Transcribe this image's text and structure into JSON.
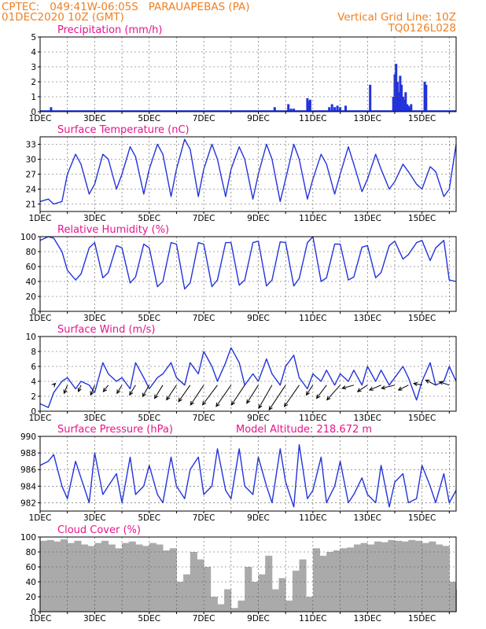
{
  "header": {
    "line1": "CPTEC:   049:41W-06:05S   PARAUAPEBAS (PA)",
    "line2": "01DEC2020 10Z (GMT)",
    "right1": "Vertical Grid Line: 10Z",
    "right2": "TQ0126L028"
  },
  "x_tick_labels": [
    "1DEC",
    "3DEC",
    "5DEC",
    "7DEC",
    "9DEC",
    "11DEC",
    "13DEC",
    "15DEC"
  ],
  "colors": {
    "header": "#f08020",
    "panel_title": "#e8148c",
    "series": "#2233dd",
    "cloud": "#aaaaaa",
    "arrow": "#000000"
  },
  "chart_data": [
    {
      "type": "bar",
      "title": "Precipitation (mm/h)",
      "xlim": [
        0,
        15.25
      ],
      "ylim": [
        0,
        5
      ],
      "yticks": [
        0,
        1,
        2,
        3,
        4,
        5
      ],
      "x": [
        0.4,
        8.6,
        9.1,
        9.2,
        9.3,
        9.8,
        9.85,
        9.9,
        10.6,
        10.7,
        10.8,
        10.9,
        11.0,
        11.2,
        12.1,
        12.95,
        13.0,
        13.05,
        13.1,
        13.15,
        13.2,
        13.25,
        13.3,
        13.35,
        13.4,
        13.45,
        13.5,
        13.55,
        13.6,
        14.1,
        14.15
      ],
      "values": [
        0.3,
        0.3,
        0.5,
        0.2,
        0.2,
        0.9,
        0.7,
        0.8,
        0.3,
        0.5,
        0.3,
        0.4,
        0.3,
        0.4,
        1.8,
        1.0,
        2.5,
        3.2,
        2.0,
        1.3,
        2.4,
        1.8,
        1.0,
        0.8,
        1.3,
        0.5,
        0.4,
        0.3,
        0.5,
        2.0,
        1.8
      ]
    },
    {
      "type": "line",
      "title": "Surface Temperature (nC)",
      "xlim": [
        0,
        15.25
      ],
      "ylim": [
        19.5,
        34.5
      ],
      "yticks": [
        21,
        24,
        27,
        30,
        33
      ],
      "x": [
        0.0,
        0.3,
        0.5,
        0.8,
        1.0,
        1.3,
        1.5,
        1.8,
        2.0,
        2.3,
        2.5,
        2.8,
        3.0,
        3.3,
        3.5,
        3.8,
        4.0,
        4.3,
        4.5,
        4.8,
        5.0,
        5.3,
        5.5,
        5.8,
        6.0,
        6.3,
        6.5,
        6.8,
        7.0,
        7.3,
        7.5,
        7.8,
        8.0,
        8.3,
        8.5,
        8.8,
        9.0,
        9.3,
        9.5,
        9.8,
        10.0,
        10.3,
        10.5,
        10.8,
        11.0,
        11.3,
        11.5,
        11.8,
        12.0,
        12.3,
        12.5,
        12.8,
        13.0,
        13.3,
        13.5,
        13.8,
        14.0,
        14.3,
        14.5,
        14.8,
        15.0,
        15.25
      ],
      "values": [
        21.5,
        22.0,
        21.0,
        21.5,
        27.0,
        31.0,
        29.0,
        23.0,
        25.0,
        31.0,
        30.0,
        24.0,
        27.0,
        32.5,
        30.5,
        23.0,
        28.0,
        33.0,
        31.0,
        22.5,
        28.0,
        34.0,
        32.0,
        22.5,
        28.0,
        33.0,
        30.0,
        22.5,
        28.0,
        32.5,
        30.0,
        22.0,
        27.0,
        33.0,
        30.0,
        21.5,
        26.0,
        33.0,
        30.0,
        22.0,
        26.0,
        31.0,
        29.0,
        23.0,
        27.0,
        32.5,
        29.0,
        23.5,
        26.0,
        31.0,
        28.0,
        24.0,
        25.5,
        29.0,
        27.5,
        25.0,
        24.0,
        28.5,
        27.5,
        22.5,
        24.0,
        33.0
      ]
    },
    {
      "type": "line",
      "title": "Relative Humidity (%)",
      "xlim": [
        0,
        15.25
      ],
      "ylim": [
        0,
        100
      ],
      "yticks": [
        0,
        20,
        40,
        60,
        80,
        100
      ],
      "x": [
        0.0,
        0.3,
        0.5,
        0.8,
        1.0,
        1.3,
        1.5,
        1.8,
        2.0,
        2.3,
        2.5,
        2.8,
        3.0,
        3.3,
        3.5,
        3.8,
        4.0,
        4.3,
        4.5,
        4.8,
        5.0,
        5.3,
        5.5,
        5.8,
        6.0,
        6.3,
        6.5,
        6.8,
        7.0,
        7.3,
        7.5,
        7.8,
        8.0,
        8.3,
        8.5,
        8.8,
        9.0,
        9.3,
        9.5,
        9.8,
        10.0,
        10.3,
        10.5,
        10.8,
        11.0,
        11.3,
        11.5,
        11.8,
        12.0,
        12.3,
        12.5,
        12.8,
        13.0,
        13.3,
        13.5,
        13.8,
        14.0,
        14.3,
        14.5,
        14.8,
        15.0,
        15.25
      ],
      "values": [
        95,
        100,
        98,
        80,
        55,
        42,
        50,
        85,
        92,
        45,
        52,
        88,
        85,
        38,
        46,
        90,
        85,
        33,
        40,
        92,
        90,
        30,
        38,
        92,
        90,
        33,
        42,
        92,
        92,
        35,
        42,
        92,
        94,
        34,
        42,
        93,
        92,
        34,
        44,
        92,
        100,
        40,
        45,
        90,
        90,
        42,
        46,
        86,
        88,
        45,
        52,
        88,
        94,
        70,
        76,
        92,
        95,
        68,
        85,
        95,
        42,
        40
      ]
    },
    {
      "type": "line",
      "title": "Surface Wind (m/s)",
      "xlim": [
        0,
        15.25
      ],
      "ylim": [
        0,
        10
      ],
      "yticks": [
        0,
        2,
        4,
        6,
        8,
        10
      ],
      "x": [
        0.0,
        0.3,
        0.5,
        0.8,
        1.0,
        1.3,
        1.5,
        1.8,
        2.0,
        2.3,
        2.5,
        2.8,
        3.0,
        3.3,
        3.5,
        3.8,
        4.0,
        4.3,
        4.5,
        4.8,
        5.0,
        5.3,
        5.5,
        5.8,
        6.0,
        6.3,
        6.5,
        6.8,
        7.0,
        7.3,
        7.5,
        7.8,
        8.0,
        8.3,
        8.5,
        8.8,
        9.0,
        9.3,
        9.5,
        9.8,
        10.0,
        10.3,
        10.5,
        10.8,
        11.0,
        11.3,
        11.5,
        11.8,
        12.0,
        12.3,
        12.5,
        12.8,
        13.0,
        13.3,
        13.5,
        13.8,
        14.0,
        14.3,
        14.5,
        14.8,
        15.0,
        15.25
      ],
      "values": [
        1.0,
        0.5,
        2.5,
        4.0,
        4.5,
        3.0,
        4.0,
        3.5,
        2.5,
        6.5,
        5.0,
        4.0,
        4.5,
        3.0,
        6.5,
        4.5,
        3.0,
        4.5,
        5.0,
        6.5,
        4.5,
        3.5,
        6.5,
        5.0,
        8.0,
        6.0,
        4.0,
        6.5,
        8.5,
        6.5,
        3.5,
        5.0,
        4.0,
        7.0,
        5.0,
        3.5,
        6.0,
        7.5,
        4.5,
        3.0,
        5.0,
        4.0,
        5.5,
        3.5,
        5.0,
        4.0,
        5.5,
        3.5,
        6.0,
        4.0,
        5.5,
        3.5,
        4.5,
        6.0,
        4.5,
        1.5,
        4.0,
        6.5,
        3.5,
        4.0,
        6.0,
        4.0
      ],
      "wind_arrows": {
        "x": [
          0.5,
          1.0,
          1.5,
          2.0,
          2.5,
          3.0,
          3.5,
          4.0,
          4.5,
          5.0,
          5.5,
          6.0,
          6.5,
          7.0,
          7.5,
          8.0,
          8.5,
          9.0,
          9.5,
          10.0,
          10.5,
          11.0,
          11.5,
          12.0,
          12.5,
          13.0,
          13.5,
          14.0,
          14.5,
          15.0
        ],
        "u": [
          0.5,
          -1.0,
          -0.8,
          -1.2,
          -1.5,
          -1.5,
          -1.8,
          -2.0,
          -2.5,
          -3.0,
          -3.5,
          -4.0,
          -4.5,
          -4.5,
          -4.0,
          -3.5,
          -4.0,
          -5.0,
          -4.5,
          -2.0,
          -3.0,
          -4.0,
          -3.5,
          -3.0,
          -3.5,
          -4.0,
          -3.0,
          -2.5,
          -3.0,
          -3.0
        ],
        "v": [
          0.5,
          -2.5,
          -2.0,
          -3.0,
          -2.0,
          -2.5,
          -3.0,
          -3.5,
          -4.0,
          -4.5,
          -5.0,
          -6.0,
          -6.0,
          -6.5,
          -6.0,
          -5.5,
          -7.0,
          -7.5,
          -6.5,
          -3.0,
          -4.0,
          -4.5,
          -1.0,
          -2.0,
          -1.5,
          -1.0,
          -1.5,
          0.5,
          1.5,
          1.0
        ]
      }
    },
    {
      "type": "line",
      "title": "Surface Pressure (hPa)",
      "subtitle": "Model Altitude: 218.672  m",
      "xlim": [
        0,
        15.25
      ],
      "ylim": [
        981,
        990
      ],
      "yticks": [
        982,
        984,
        986,
        988,
        990
      ],
      "x": [
        0.0,
        0.3,
        0.5,
        0.8,
        1.0,
        1.3,
        1.5,
        1.8,
        2.0,
        2.3,
        2.5,
        2.8,
        3.0,
        3.3,
        3.5,
        3.8,
        4.0,
        4.3,
        4.5,
        4.8,
        5.0,
        5.3,
        5.5,
        5.8,
        6.0,
        6.3,
        6.5,
        6.8,
        7.0,
        7.3,
        7.5,
        7.8,
        8.0,
        8.3,
        8.5,
        8.8,
        9.0,
        9.3,
        9.5,
        9.8,
        10.0,
        10.3,
        10.5,
        10.8,
        11.0,
        11.3,
        11.5,
        11.8,
        12.0,
        12.3,
        12.5,
        12.8,
        13.0,
        13.3,
        13.5,
        13.8,
        14.0,
        14.3,
        14.5,
        14.8,
        15.0,
        15.25
      ],
      "values": [
        986.5,
        987.0,
        987.8,
        984.0,
        982.5,
        987.0,
        985.0,
        982.0,
        988.0,
        983.0,
        984.0,
        985.5,
        982.0,
        987.5,
        983.0,
        984.0,
        986.5,
        983.0,
        982.0,
        987.5,
        984.0,
        982.5,
        986.0,
        987.5,
        983.0,
        984.0,
        988.5,
        983.5,
        982.5,
        988.5,
        984.0,
        983.0,
        987.5,
        984.0,
        982.0,
        988.5,
        984.5,
        981.5,
        989.0,
        982.5,
        983.5,
        987.5,
        982.0,
        984.0,
        987.0,
        982.0,
        983.0,
        985.0,
        983.0,
        982.0,
        986.5,
        981.5,
        984.5,
        985.5,
        982.0,
        982.5,
        986.5,
        984.0,
        982.0,
        985.5,
        982.0,
        983.5
      ]
    },
    {
      "type": "area",
      "title": "Cloud Cover (%)",
      "xlim": [
        0,
        15.25
      ],
      "ylim": [
        0,
        100
      ],
      "yticks": [
        0,
        20,
        40,
        60,
        80,
        100
      ],
      "x": [
        0.0,
        0.25,
        0.5,
        0.75,
        1.0,
        1.25,
        1.5,
        1.75,
        2.0,
        2.25,
        2.5,
        2.75,
        3.0,
        3.25,
        3.5,
        3.75,
        4.0,
        4.25,
        4.5,
        4.75,
        5.0,
        5.25,
        5.5,
        5.75,
        6.0,
        6.25,
        6.5,
        6.75,
        7.0,
        7.25,
        7.5,
        7.75,
        8.0,
        8.25,
        8.5,
        8.75,
        9.0,
        9.25,
        9.5,
        9.75,
        10.0,
        10.25,
        10.5,
        10.75,
        11.0,
        11.25,
        11.5,
        11.75,
        12.0,
        12.25,
        12.5,
        12.75,
        13.0,
        13.25,
        13.5,
        13.75,
        14.0,
        14.25,
        14.5,
        14.75,
        15.0,
        15.25
      ],
      "values": [
        95,
        96,
        94,
        97,
        92,
        95,
        90,
        88,
        92,
        95,
        90,
        85,
        92,
        94,
        90,
        88,
        92,
        90,
        82,
        85,
        40,
        50,
        80,
        70,
        60,
        20,
        10,
        30,
        5,
        15,
        60,
        40,
        50,
        75,
        30,
        45,
        15,
        55,
        70,
        20,
        85,
        75,
        80,
        82,
        85,
        86,
        90,
        92,
        90,
        94,
        93,
        96,
        95,
        94,
        96,
        95,
        92,
        94,
        90,
        88,
        40,
        30
      ]
    }
  ]
}
